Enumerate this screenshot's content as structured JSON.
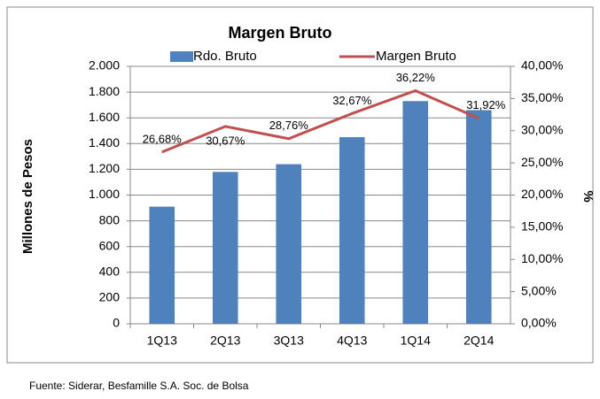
{
  "chart_data": {
    "type": "bar-line",
    "title": "Margen Bruto",
    "categories": [
      "1Q13",
      "2Q13",
      "3Q13",
      "4Q13",
      "1Q14",
      "2Q14"
    ],
    "series": [
      {
        "name": "Rdo. Bruto",
        "color": "#4f81bd",
        "type": "bar",
        "values": [
          910,
          1180,
          1240,
          1450,
          1730,
          1660
        ]
      },
      {
        "name": "Margen Bruto",
        "color": "#c0504d",
        "type": "line",
        "axis": "y2",
        "values": [
          26.68,
          30.67,
          28.76,
          32.67,
          36.22,
          31.92
        ],
        "value_labels": [
          "26,68%",
          "30,67%",
          "28,76%",
          "32,67%",
          "36,22%",
          "31,92%"
        ]
      }
    ],
    "ylabel": "Millones de Pesos",
    "y2label": "%",
    "ylim": [
      0,
      2000
    ],
    "yticks": [
      0,
      {
        "value": 200,
        "label": "200"
      },
      {
        "value": 400,
        "label": "400"
      },
      {
        "value": 600,
        "label": "600"
      },
      {
        "value": 800,
        "label": "800"
      },
      {
        "value": 1000,
        "label": "1.000"
      },
      {
        "value": 1200,
        "label": "1.200"
      },
      {
        "value": 1400,
        "label": "1.400"
      },
      {
        "value": 1600,
        "label": "1.600"
      },
      {
        "value": 1800,
        "label": "1.800"
      },
      {
        "value": 2000,
        "label": "2.000"
      }
    ],
    "y2lim": [
      0,
      40
    ],
    "y2ticks": [
      {
        "value": 0,
        "label": "0,00%"
      },
      {
        "value": 5,
        "label": "5,00%"
      },
      {
        "value": 10,
        "label": "10,00%"
      },
      {
        "value": 15,
        "label": "15,00%"
      },
      {
        "value": 20,
        "label": "20,00%"
      },
      {
        "value": 25,
        "label": "25,00%"
      },
      {
        "value": 30,
        "label": "30,00%"
      },
      {
        "value": 35,
        "label": "35,00%"
      },
      {
        "value": 40,
        "label": "40,00%"
      }
    ],
    "grid": true,
    "source": "Fuente: Siderar, Besfamille S.A. Soc. de Bolsa"
  }
}
